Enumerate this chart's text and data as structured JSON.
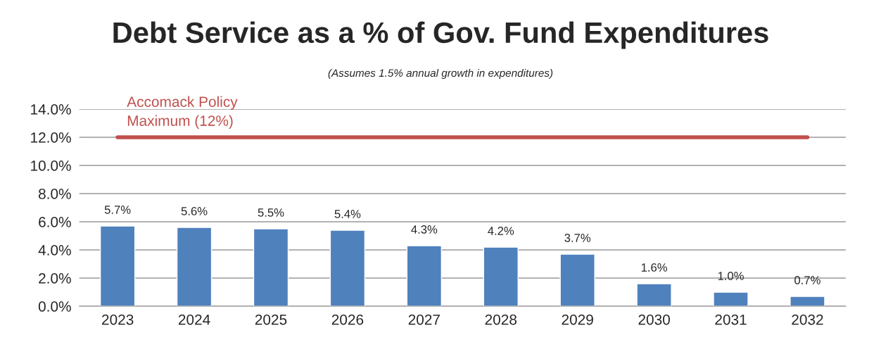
{
  "chart_data": {
    "type": "bar",
    "title": "Debt Service as a % of Gov. Fund Expenditures",
    "subtitle": "(Assumes 1.5% annual growth in expenditures)",
    "categories": [
      "2023",
      "2024",
      "2025",
      "2026",
      "2027",
      "2028",
      "2029",
      "2030",
      "2031",
      "2032"
    ],
    "series": [
      {
        "color": "#4f81bd",
        "values": [
          5.7,
          5.6,
          5.5,
          5.4,
          4.3,
          4.2,
          3.7,
          1.6,
          1.0,
          0.7
        ],
        "value_labels": [
          "5.7%",
          "5.6%",
          "5.5%",
          "5.4%",
          "4.3%",
          "4.2%",
          "3.7%",
          "1.6%",
          "1.0%",
          "0.7%"
        ]
      },
      {
        "type": "line",
        "name": "Accomack Policy\nMaximum (12%)",
        "color": "#c0504d",
        "values": [
          12,
          12,
          12,
          12,
          12,
          12,
          12,
          12,
          12,
          12
        ]
      }
    ],
    "ylim": [
      0,
      14
    ],
    "yticks": [
      {
        "value": 0,
        "label": "0.0%"
      },
      {
        "value": 2,
        "label": "2.0%"
      },
      {
        "value": 4,
        "label": "4.0%"
      },
      {
        "value": 6,
        "label": "6.0%"
      },
      {
        "value": 8,
        "label": "8.0%"
      },
      {
        "value": 10,
        "label": "10.0%"
      },
      {
        "value": 12,
        "label": "12.0%"
      },
      {
        "value": 14,
        "label": "14.0%"
      }
    ],
    "grid": "y",
    "legend": false
  }
}
